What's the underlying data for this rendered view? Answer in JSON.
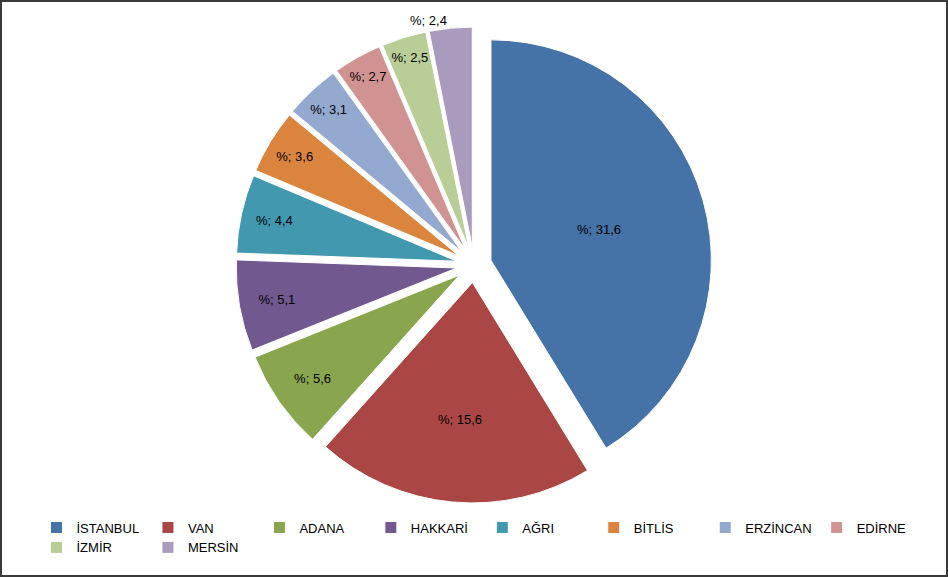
{
  "chart_data": {
    "type": "pie",
    "categories": [
      "İSTANBUL",
      "VAN",
      "ADANA",
      "HAKKARİ",
      "AĞRI",
      "BİTLİS",
      "ERZİNCAN",
      "EDİRNE",
      "İZMİR",
      "MERSİN"
    ],
    "values": [
      31.6,
      15.6,
      5.6,
      5.1,
      4.4,
      3.6,
      3.1,
      2.7,
      2.5,
      2.4
    ],
    "value_labels": [
      "%; 31,6",
      "%; 15,6",
      "%; 5,6",
      "%; 5,1",
      "%; 4,4",
      "%; 3,6",
      "%; 3,1",
      "%; 2,7",
      "%; 2,5",
      "%; 2,4"
    ],
    "colors": [
      "#4572A7",
      "#AA4643",
      "#89A54E",
      "#71588F",
      "#4198AF",
      "#DB843D",
      "#93A9CF",
      "#D19392",
      "#B9CD96",
      "#A99BBD"
    ],
    "data_labels": true,
    "legend": "bottom"
  }
}
